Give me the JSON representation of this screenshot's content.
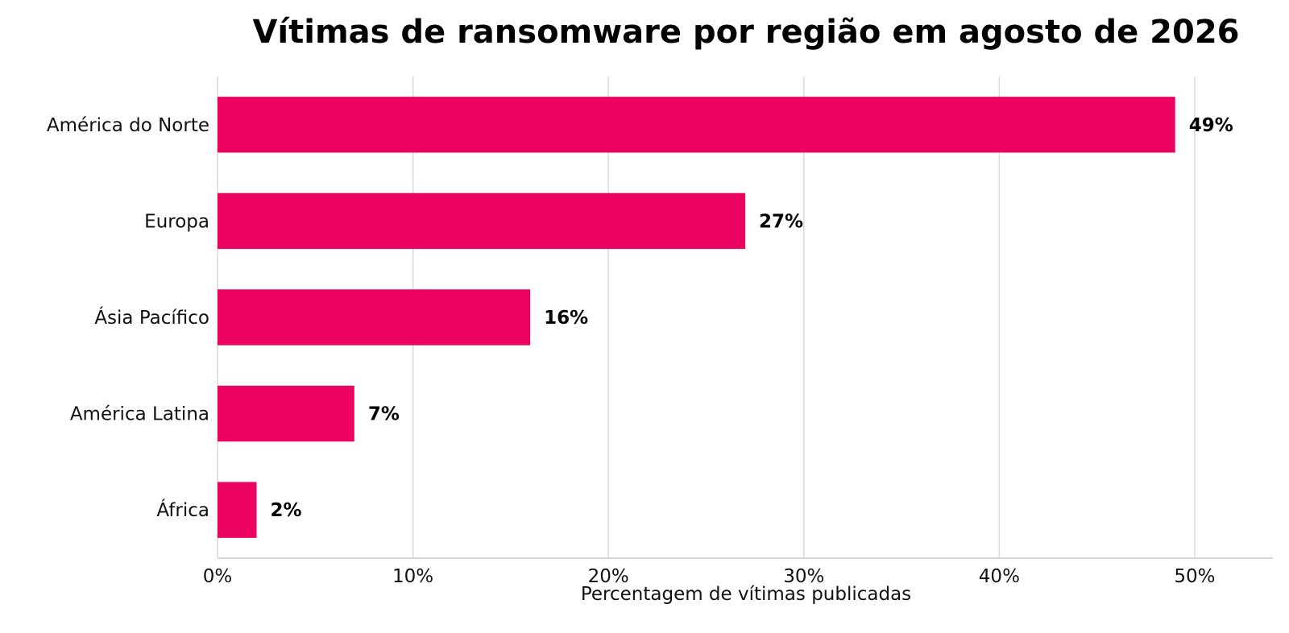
{
  "chart_data": {
    "type": "bar",
    "orientation": "horizontal",
    "title": "Vítimas de ransomware por região em agosto de 2026",
    "xlabel": "Percentagem de vítimas publicadas",
    "ylabel": "",
    "categories": [
      "América do Norte",
      "Europa",
      "Ásia Pacífico",
      "América Latina",
      "África"
    ],
    "values": [
      49,
      27,
      16,
      7,
      2
    ],
    "value_labels": [
      "49%",
      "27%",
      "16%",
      "7%",
      "2%"
    ],
    "xlim": [
      0,
      54
    ],
    "x_ticks": [
      0,
      10,
      20,
      30,
      40,
      50
    ],
    "x_tick_labels": [
      "0%",
      "10%",
      "20%",
      "30%",
      "40%",
      "50%"
    ],
    "grid": "vertical",
    "legend": "none",
    "colors": {
      "bar": "#EB035F",
      "grid": "#D9D9D9",
      "axis": "#CCCCCC"
    }
  }
}
